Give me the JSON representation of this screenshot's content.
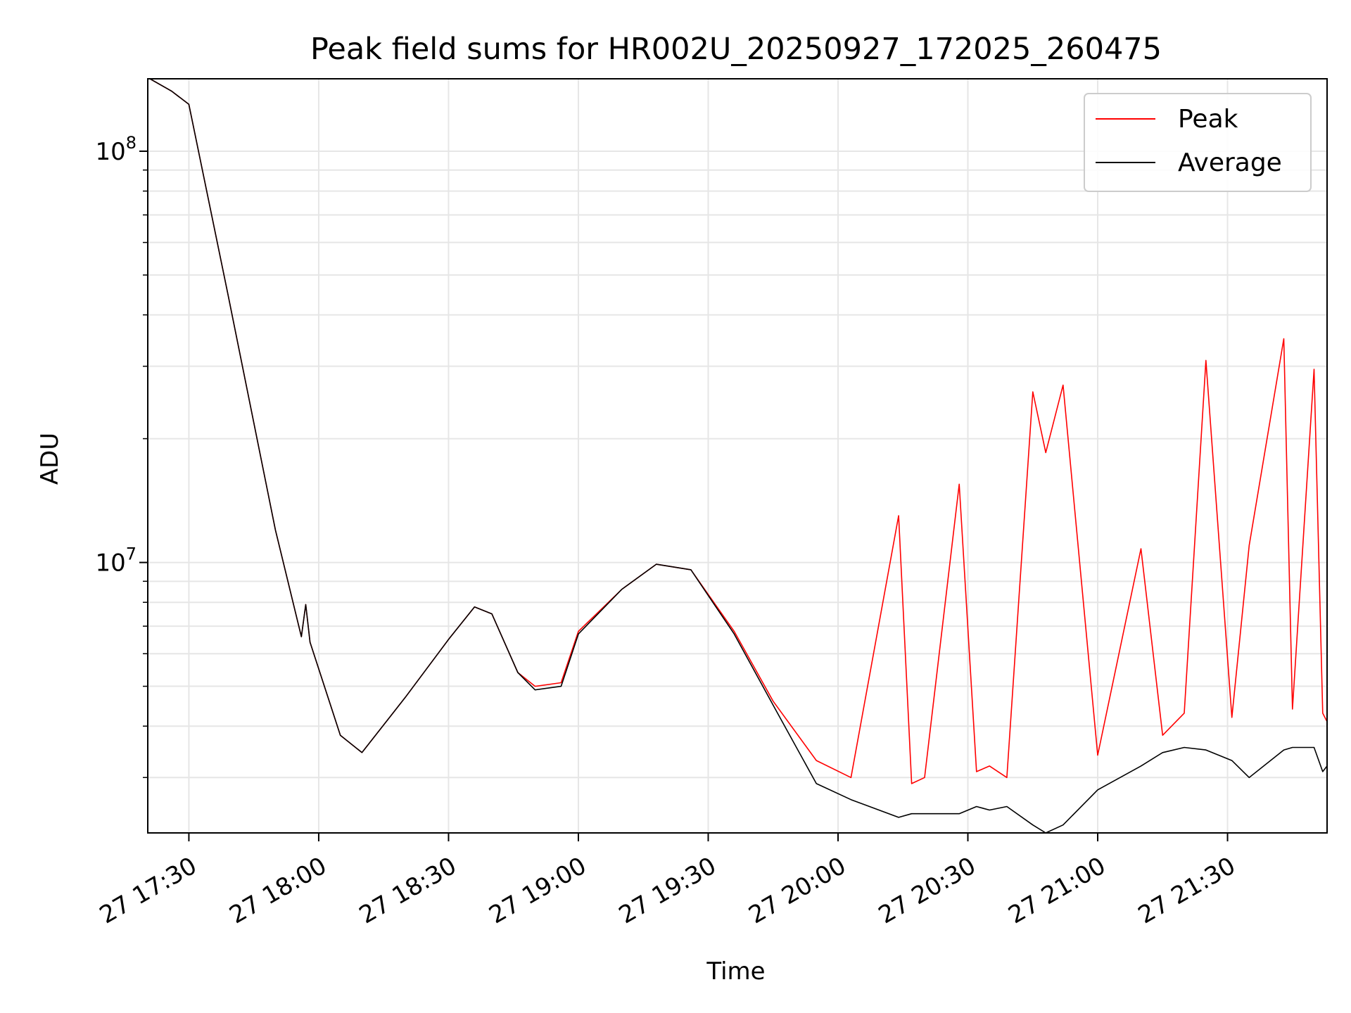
{
  "chart_data": {
    "type": "line",
    "title": "Peak field sums for HR002U_20250927_172025_260475",
    "xlabel": "Time",
    "ylabel": "ADU",
    "yscale": "log",
    "ylim": [
      2200000,
      150000000
    ],
    "xlim": [
      "27 17:20:30",
      "27 21:53:00"
    ],
    "grid": true,
    "legend_position": "top-right",
    "x_ticks": [
      "27 17:30",
      "27 18:00",
      "27 18:30",
      "27 19:00",
      "27 19:30",
      "27 20:00",
      "27 20:30",
      "27 21:00",
      "27 21:30"
    ],
    "y_ticks": [
      {
        "base": "10",
        "exp": "8"
      },
      {
        "base": "10",
        "exp": "7"
      }
    ],
    "colors": {
      "Peak": "#ff0000",
      "Average": "#000000"
    },
    "series": [
      {
        "name": "Peak",
        "x": [
          "27 17:21",
          "27 17:26",
          "27 17:30",
          "27 17:39",
          "27 17:50",
          "27 17:56",
          "27 17:57",
          "27 17:58",
          "27 18:05",
          "27 18:10",
          "27 18:20",
          "27 18:30",
          "27 18:36",
          "27 18:40",
          "27 18:46",
          "27 18:50",
          "27 18:56",
          "27 19:00",
          "27 19:10",
          "27 19:18",
          "27 19:26",
          "27 19:36",
          "27 19:45",
          "27 19:55",
          "27 20:03",
          "27 20:14",
          "27 20:17",
          "27 20:20",
          "27 20:28",
          "27 20:32",
          "27 20:35",
          "27 20:39",
          "27 20:45",
          "27 20:48",
          "27 20:52",
          "27 21:00",
          "27 21:10",
          "27 21:15",
          "27 21:20",
          "27 21:25",
          "27 21:31",
          "27 21:35",
          "27 21:43",
          "27 21:45",
          "27 21:50",
          "27 21:52",
          "27 21:53"
        ],
        "y": [
          150000000,
          140000000,
          130000000,
          45000000,
          12000000,
          6600000,
          7900000,
          6400000,
          3800000,
          3450000,
          4700000,
          6500000,
          7800000,
          7500000,
          5400000,
          5000000,
          5100000,
          6800000,
          8600000,
          9900000,
          9600000,
          6800000,
          4600000,
          3300000,
          3000000,
          13000000,
          2900000,
          3000000,
          15500000,
          3100000,
          3200000,
          3000000,
          26000000,
          18500000,
          27000000,
          3400000,
          10800000,
          3800000,
          4300000,
          31000000,
          4200000,
          11000000,
          35000000,
          4400000,
          29500000,
          4300000,
          4100000
        ]
      },
      {
        "name": "Average",
        "x": [
          "27 17:21",
          "27 17:26",
          "27 17:30",
          "27 17:39",
          "27 17:50",
          "27 17:56",
          "27 17:57",
          "27 17:58",
          "27 18:05",
          "27 18:10",
          "27 18:20",
          "27 18:30",
          "27 18:36",
          "27 18:40",
          "27 18:46",
          "27 18:50",
          "27 18:56",
          "27 19:00",
          "27 19:10",
          "27 19:18",
          "27 19:26",
          "27 19:36",
          "27 19:45",
          "27 19:55",
          "27 20:03",
          "27 20:14",
          "27 20:17",
          "27 20:20",
          "27 20:28",
          "27 20:32",
          "27 20:35",
          "27 20:39",
          "27 20:45",
          "27 20:48",
          "27 20:52",
          "27 21:00",
          "27 21:10",
          "27 21:15",
          "27 21:20",
          "27 21:25",
          "27 21:31",
          "27 21:35",
          "27 21:43",
          "27 21:45",
          "27 21:50",
          "27 21:52",
          "27 21:53"
        ],
        "y": [
          150000000,
          140000000,
          130000000,
          45000000,
          12000000,
          6600000,
          7900000,
          6400000,
          3800000,
          3450000,
          4700000,
          6500000,
          7800000,
          7500000,
          5400000,
          4900000,
          5000000,
          6700000,
          8600000,
          9900000,
          9600000,
          6700000,
          4500000,
          2900000,
          2650000,
          2400000,
          2450000,
          2450000,
          2450000,
          2550000,
          2500000,
          2550000,
          2300000,
          2200000,
          2300000,
          2800000,
          3200000,
          3450000,
          3550000,
          3500000,
          3300000,
          3000000,
          3500000,
          3550000,
          3550000,
          3100000,
          3200000
        ]
      }
    ]
  }
}
